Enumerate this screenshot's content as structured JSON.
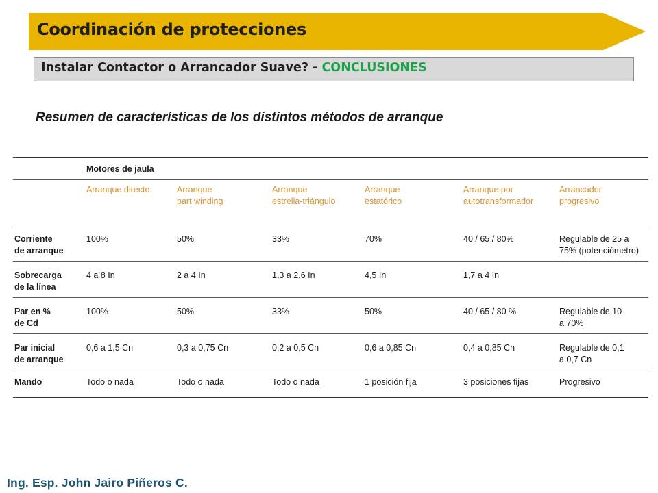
{
  "header": {
    "title": "Coordinación de protecciones",
    "subtitle_main": "Instalar Contactor o Arrancador Suave? - ",
    "subtitle_accent": "CONCLUSIONES",
    "banner_color": "#e8b400",
    "accent_color": "#1aa34a"
  },
  "section": {
    "title": "Resumen de características de los distintos métodos de arranque"
  },
  "table": {
    "group_label": "Motores de jaula",
    "columns": [
      "Arranque directo",
      "Arranque\npart winding",
      "Arranque\nestrella-triángulo",
      "Arranque\nestatórico",
      "Arranque por\nautotransformador",
      "Arrancador\nprogresivo"
    ],
    "rows": [
      {
        "label": "Corriente\nde arranque",
        "cells": [
          "100%",
          "50%",
          "33%",
          "70%",
          "40 / 65 / 80%",
          "Regulable de 25 a\n75% (potenciómetro)"
        ]
      },
      {
        "label": "Sobrecarga\nde la línea",
        "cells": [
          "4 a 8 In",
          "2 a 4 In",
          "1,3 a 2,6 In",
          "4,5 In",
          "1,7 a 4 In",
          ""
        ]
      },
      {
        "label": "Par en %\nde Cd",
        "cells": [
          "100%",
          "50%",
          "33%",
          "50%",
          "40 / 65 / 80 %",
          "Regulable de 10\na 70%"
        ]
      },
      {
        "label": "Par inicial\nde arranque",
        "cells": [
          "0,6 a 1,5 Cn",
          "0,3 a 0,75 Cn",
          "0,2 a 0,5 Cn",
          "0,6 a 0,85 Cn",
          "0,4 a 0,85 Cn",
          "Regulable de 0,1\na 0,7 Cn"
        ]
      },
      {
        "label": "Mando",
        "cells": [
          "Todo o nada",
          "Todo o nada",
          "Todo o nada",
          "1 posición fija",
          "3 posiciones fijas",
          "Progresivo"
        ]
      }
    ]
  },
  "footer": {
    "author": "Ing. Esp. John Jairo Piñeros C."
  }
}
